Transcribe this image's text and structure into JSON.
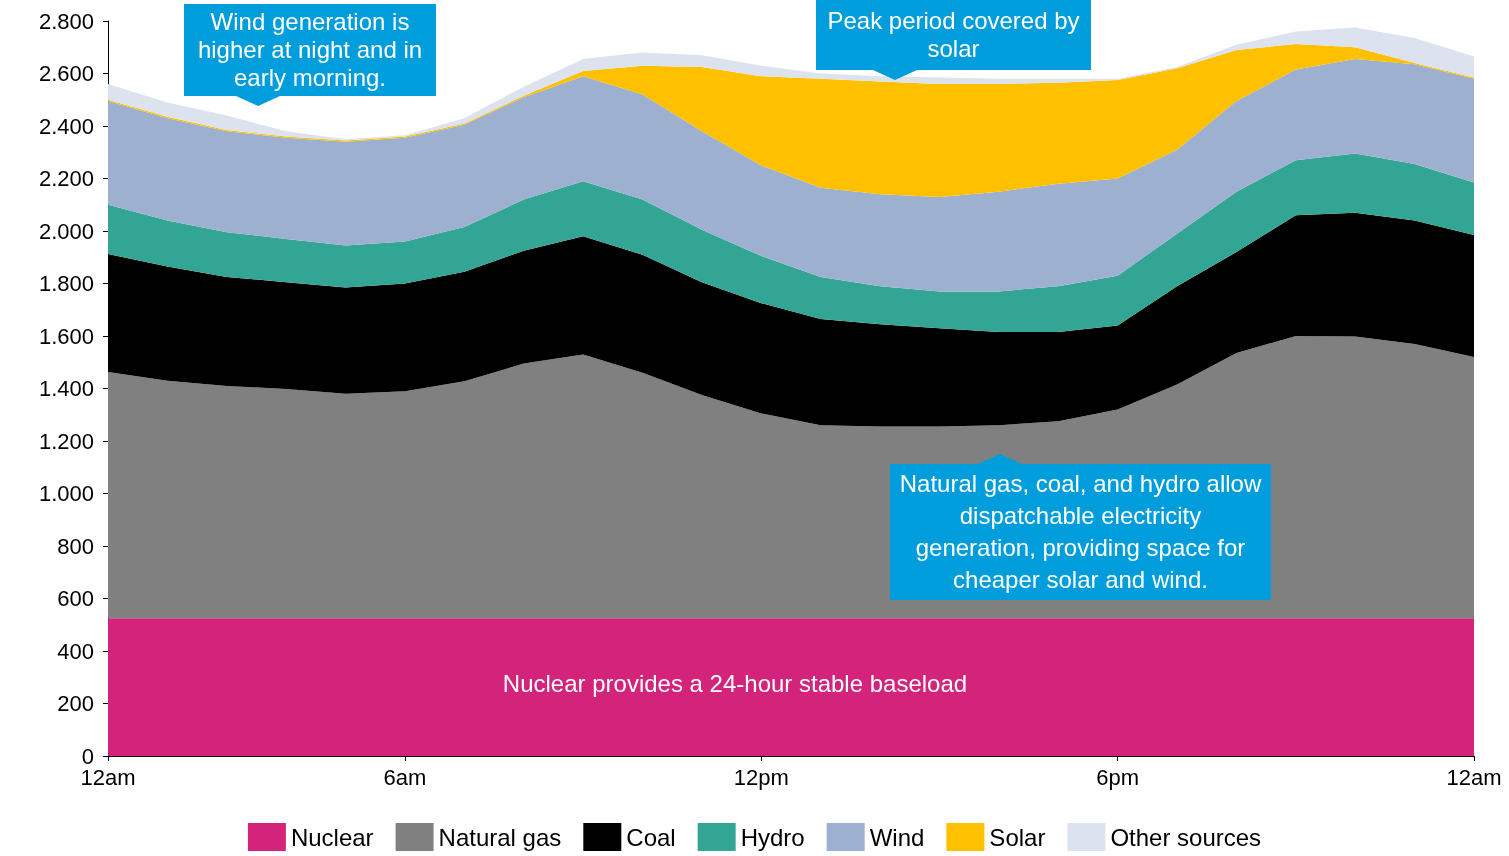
{
  "chart_data": {
    "type": "area",
    "stacked": true,
    "marker": "none",
    "grid": false,
    "legend": "bottom",
    "categories": [
      "12am",
      null,
      null,
      null,
      null,
      "6am",
      null,
      null,
      null,
      null,
      null,
      "12pm",
      null,
      null,
      null,
      null,
      null,
      "6pm",
      null,
      null,
      null,
      null,
      null,
      "12am"
    ],
    "ylim": [
      0,
      2800
    ],
    "yticks": [
      0,
      200,
      400,
      600,
      800,
      {
        "value": 1000,
        "label": "1.000"
      },
      {
        "value": 1200,
        "label": "1.200"
      },
      {
        "value": 1400,
        "label": "1.400"
      },
      {
        "value": 1600,
        "label": "1.600"
      },
      {
        "value": 1800,
        "label": "1.800"
      },
      {
        "value": 2000,
        "label": "2.000"
      },
      {
        "value": 2200,
        "label": "2.200"
      },
      {
        "value": 2400,
        "label": "2.400"
      },
      {
        "value": 2600,
        "label": "2.600"
      },
      {
        "value": 2800,
        "label": "2.800"
      }
    ],
    "series": [
      {
        "name": "Nuclear",
        "color": "#d4237a",
        "values": [
          525,
          525,
          525,
          525,
          525,
          525,
          525,
          525,
          525,
          525,
          525,
          525,
          525,
          525,
          525,
          525,
          525,
          525,
          525,
          525,
          525,
          525,
          525,
          525
        ]
      },
      {
        "name": "Natural gas",
        "color": "#808080",
        "values": [
          938,
          905,
          885,
          873,
          855,
          865,
          903,
          970,
          1005,
          935,
          850,
          780,
          735,
          730,
          730,
          735,
          750,
          795,
          890,
          1010,
          1075,
          1073,
          1045,
          995
        ]
      },
      {
        "name": "Coal",
        "color": "#000000",
        "values": [
          449,
          435,
          415,
          407,
          405,
          410,
          417,
          430,
          450,
          450,
          430,
          420,
          405,
          390,
          375,
          355,
          340,
          320,
          375,
          385,
          460,
          472,
          470,
          465
        ]
      },
      {
        "name": "Hydro",
        "color": "#33a594",
        "values": [
          188,
          175,
          170,
          165,
          160,
          160,
          170,
          195,
          210,
          210,
          200,
          180,
          160,
          145,
          140,
          155,
          175,
          190,
          200,
          230,
          210,
          225,
          215,
          200
        ]
      },
      {
        "name": "Wind",
        "color": "#9eb0d0",
        "values": [
          395,
          390,
          385,
          385,
          395,
          395,
          390,
          390,
          400,
          400,
          375,
          345,
          340,
          350,
          360,
          380,
          390,
          370,
          320,
          345,
          345,
          360,
          380,
          395
        ]
      },
      {
        "name": "Solar",
        "color": "#ffc000",
        "values": [
          5,
          5,
          5,
          5,
          5,
          5,
          5,
          5,
          20,
          110,
          245,
          340,
          415,
          430,
          430,
          410,
          385,
          375,
          310,
          195,
          97,
          45,
          5,
          5
        ]
      },
      {
        "name": "Other sources",
        "color": "#dde3ee",
        "values": [
          60,
          55,
          55,
          20,
          5,
          5,
          20,
          35,
          45,
          50,
          45,
          40,
          20,
          20,
          25,
          20,
          15,
          5,
          5,
          20,
          48,
          75,
          95,
          80
        ]
      }
    ],
    "annotations": [
      "Wind generation is higher at night and in early morning.",
      "Peak period covered by solar",
      "Natural gas, coal, and hydro allow dispatchable electricity generation, providing space for cheaper solar and wind.",
      "Nuclear provides a 24-hour stable baseload"
    ]
  }
}
